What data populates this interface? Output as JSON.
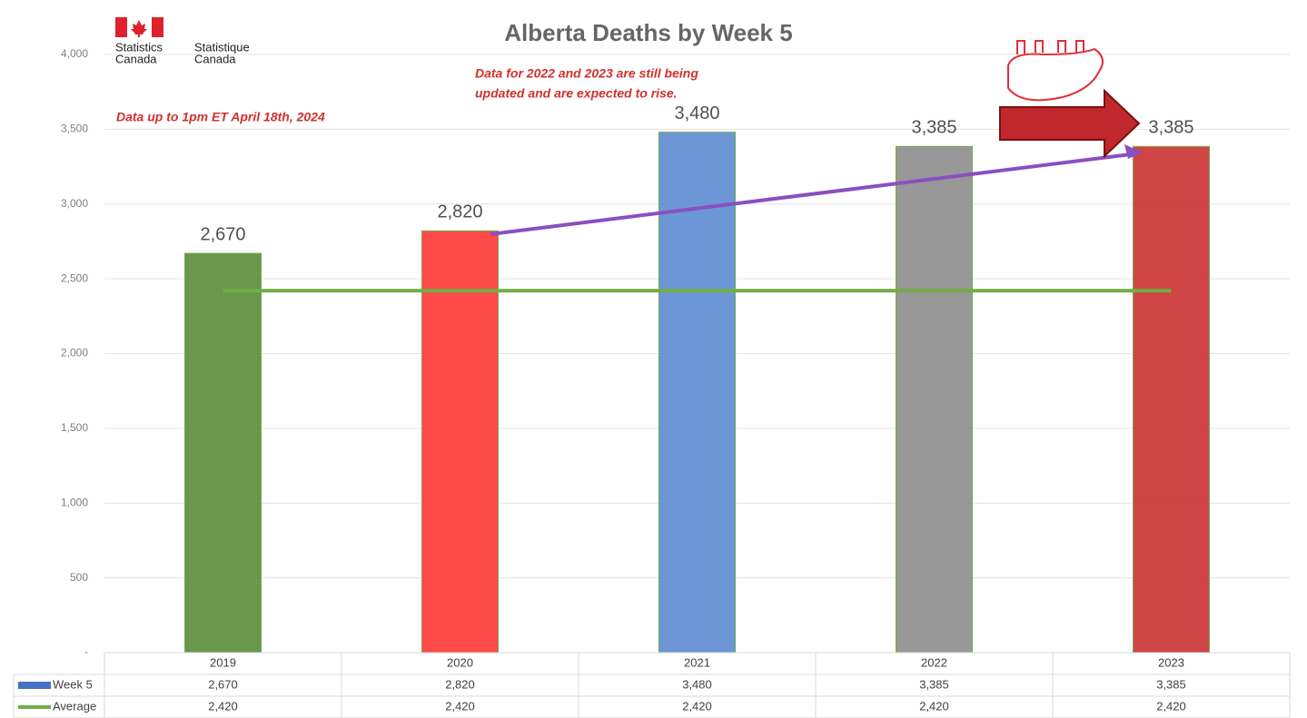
{
  "chart_data": {
    "type": "bar",
    "title": "Alberta Deaths by Week 5",
    "annotations": [
      "Data up to 1pm ET April 18th, 2024",
      [
        "Data for 2022 and 2023 are still being",
        "updated and are expected to rise."
      ]
    ],
    "logo": {
      "en": [
        "Statistics",
        "Canada"
      ],
      "fr": [
        "Statistique",
        "Canada"
      ]
    },
    "categories": [
      "2019",
      "2020",
      "2021",
      "2022",
      "2023"
    ],
    "series": [
      {
        "name": "Week 5",
        "type": "bar",
        "color": "#4472c4",
        "colors": [
          "#5e8d3f",
          "#ff3b3b",
          "#5f8dd3",
          "#8f8f8f",
          "#cc3535"
        ],
        "values": [
          2670,
          2820,
          3480,
          3385,
          3385
        ],
        "value_labels": [
          "2,670",
          "2,820",
          "3,480",
          "3,385",
          "3,385"
        ]
      },
      {
        "name": "Average",
        "type": "line",
        "color": "#70ad47",
        "values": [
          2420,
          2420,
          2420,
          2420,
          2420
        ],
        "value_labels": [
          "2,420",
          "2,420",
          "2,420",
          "2,420",
          "2,420"
        ]
      }
    ],
    "ylim": [
      0,
      4000
    ],
    "yticks": [
      {
        "value": 0,
        "label": "-"
      },
      500,
      {
        "value": 1000,
        "label": "1,000"
      },
      {
        "value": 1500,
        "label": "1,500"
      },
      {
        "value": 2000,
        "label": "2,000"
      },
      {
        "value": 2500,
        "label": "2,500"
      },
      {
        "value": 3000,
        "label": "3,000"
      },
      {
        "value": 3500,
        "label": "3,500"
      },
      {
        "value": 4000,
        "label": "4,000"
      }
    ],
    "grid": true
  }
}
